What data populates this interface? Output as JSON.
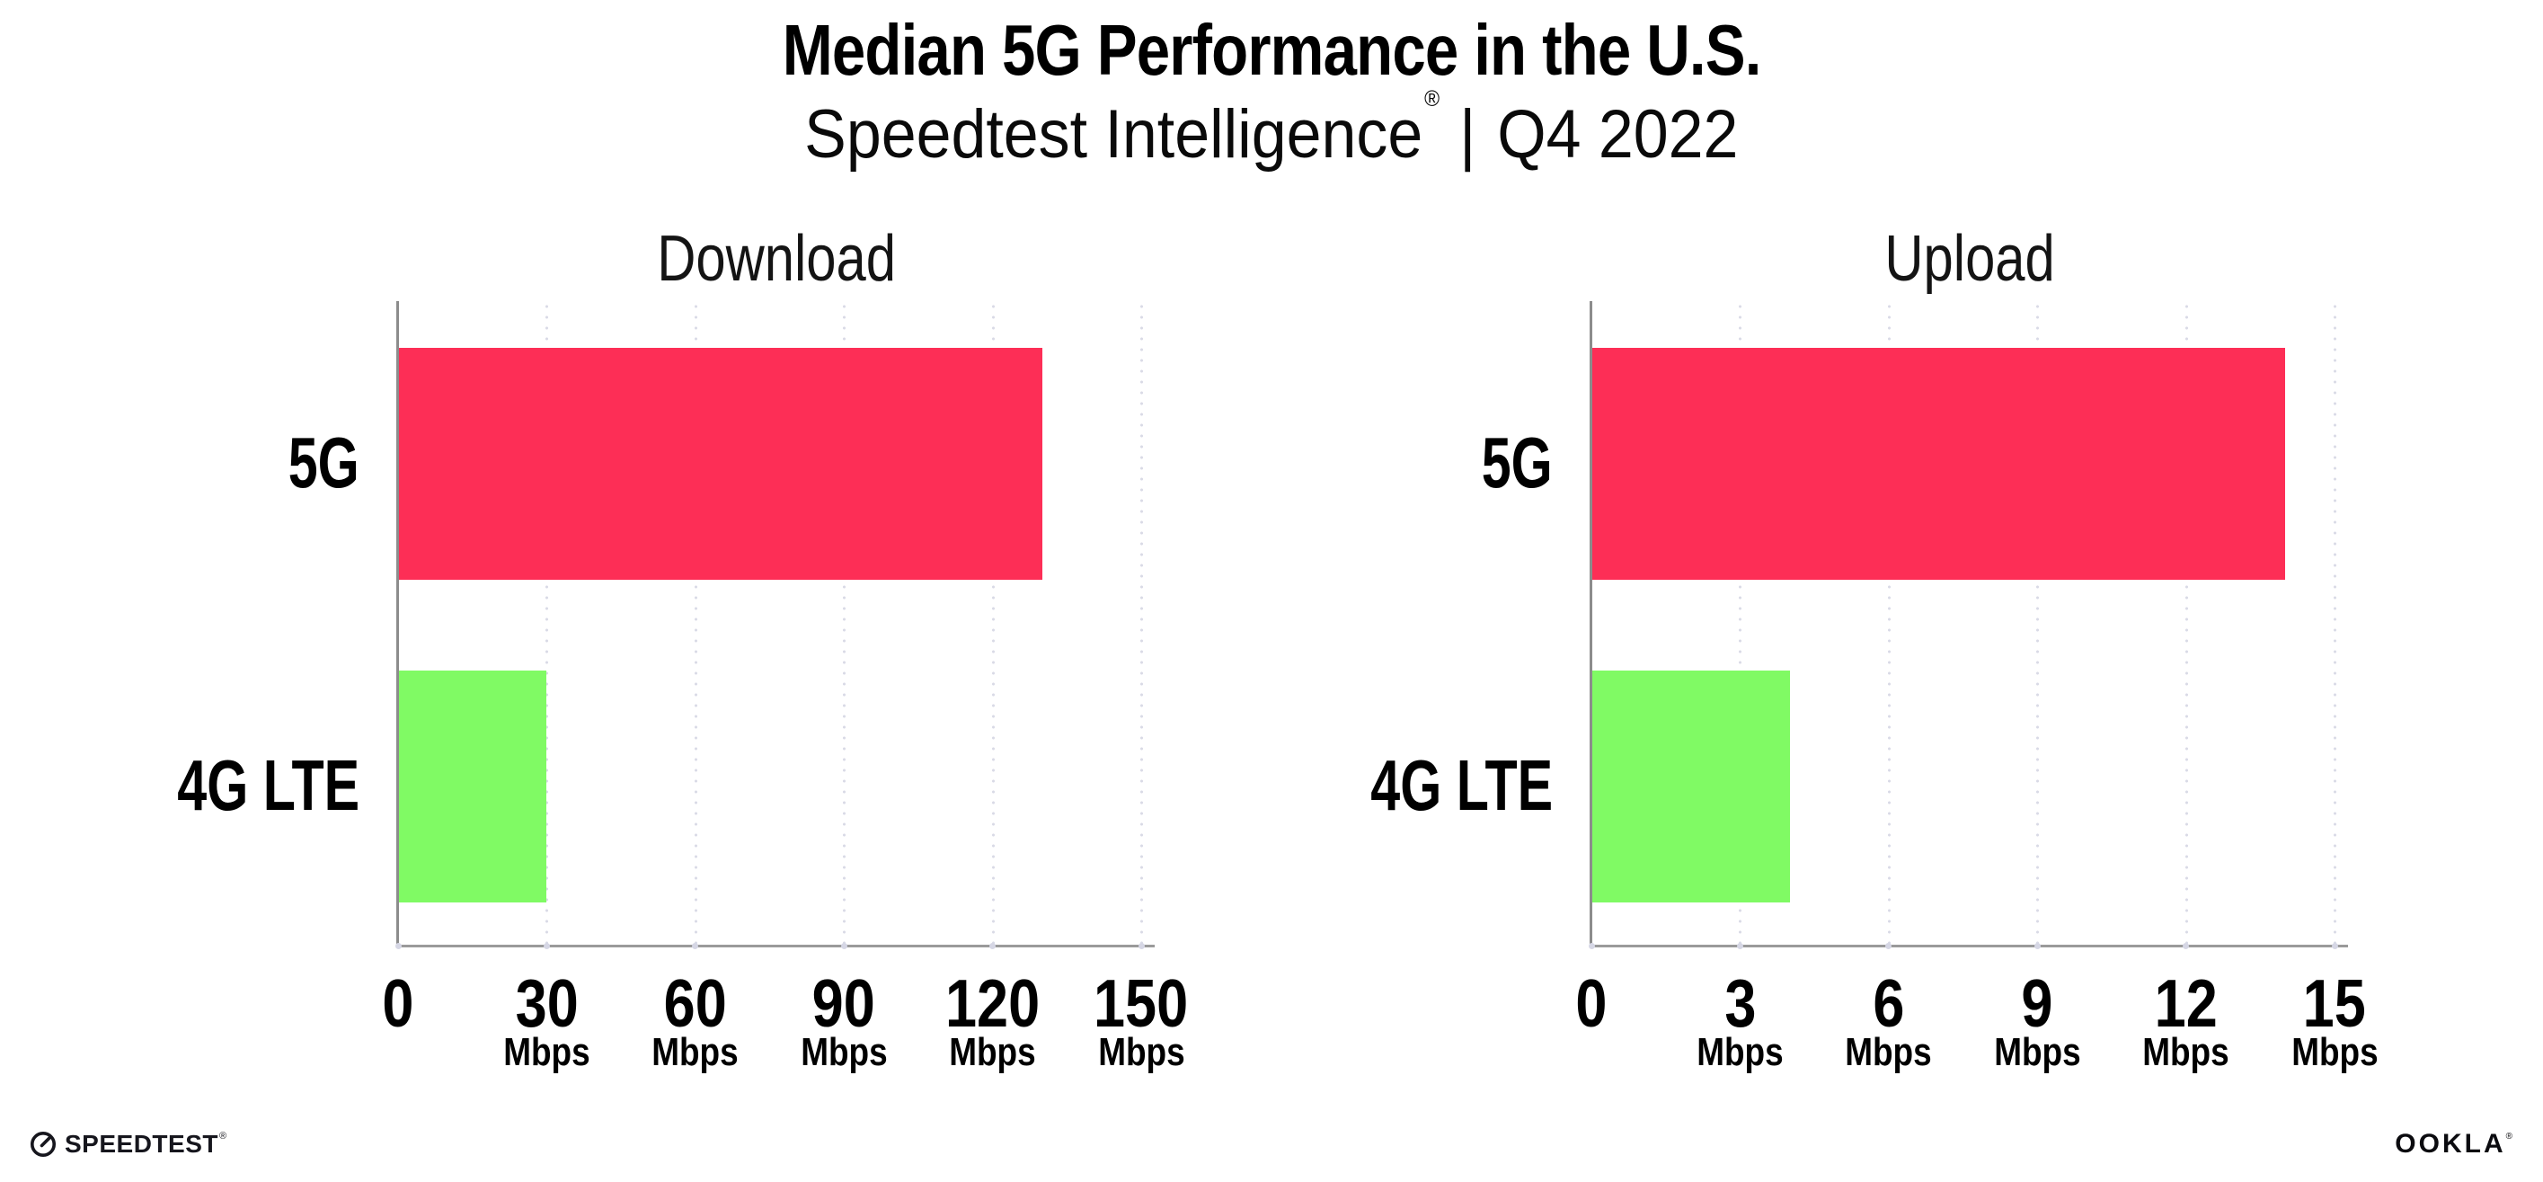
{
  "header": {
    "title": "Median 5G Performance in the U.S.",
    "subtitle_brand": "Speedtest Intelligence",
    "subtitle_reg": "®",
    "subtitle_divider": "|",
    "subtitle_period": "Q4 2022"
  },
  "chart_data": [
    {
      "type": "bar",
      "orientation": "horizontal",
      "title": "Download",
      "categories": [
        "5G",
        "4G LTE"
      ],
      "values": [
        130,
        30
      ],
      "unit": "Mbps",
      "xlim": [
        0,
        150
      ],
      "xticks": [
        0,
        30,
        60,
        90,
        120,
        150
      ],
      "bar_colors": [
        "#FD2E56",
        "#80FA64"
      ],
      "grid": "dotted-vertical",
      "legend": "none"
    },
    {
      "type": "bar",
      "orientation": "horizontal",
      "title": "Upload",
      "categories": [
        "5G",
        "4G LTE"
      ],
      "values": [
        14,
        4
      ],
      "unit": "Mbps",
      "xlim": [
        0,
        15
      ],
      "xticks": [
        0,
        3,
        6,
        9,
        12,
        15
      ],
      "bar_colors": [
        "#FD2E56",
        "#80FA64"
      ],
      "grid": "dotted-vertical",
      "legend": "none"
    }
  ],
  "colors": {
    "bar_5g": "#FD2E56",
    "bar_4g_lte": "#80FA64",
    "axis_line": "#9a9a9a",
    "grid_dot": "#d9dae6",
    "text": "#000000"
  },
  "footer": {
    "speedtest_logo_text": "SPEEDTEST",
    "speedtest_mark": "®",
    "ookla_logo_text": "OOKLA",
    "ookla_mark": "®"
  }
}
